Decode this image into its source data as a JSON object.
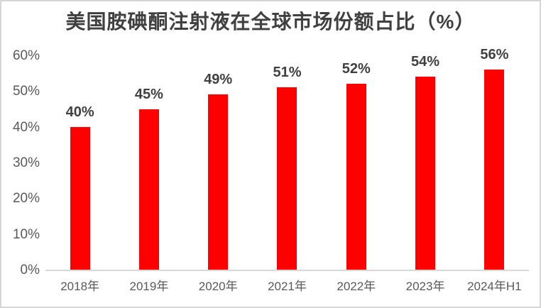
{
  "title": "美国胺碘酮注射液在全球市场份额占比（%）",
  "colors": {
    "bar": "#ff0000",
    "title_text": "#404040",
    "data_label_text": "#404040",
    "axis_text": "#595959",
    "axis_line": "#d9d9d9",
    "border": "#d6d6d6",
    "background": "#ffffff"
  },
  "chart_data": {
    "type": "bar",
    "title": "美国胺碘酮注射液在全球市场份额占比（%）",
    "categories": [
      "2018年",
      "2019年",
      "2020年",
      "2021年",
      "2022年",
      "2023年",
      "2024年H1"
    ],
    "values": [
      40,
      45,
      49,
      51,
      52,
      54,
      56
    ],
    "data_labels": [
      "40%",
      "45%",
      "49%",
      "51%",
      "52%",
      "54%",
      "56%"
    ],
    "xlabel": "",
    "ylabel": "",
    "ylim": [
      0,
      60
    ],
    "yticks": [
      0,
      10,
      20,
      30,
      40,
      50,
      60
    ],
    "ytick_labels": [
      "0%",
      "10%",
      "20%",
      "30%",
      "40%",
      "50%",
      "60%"
    ],
    "grid": false,
    "legend": "none",
    "bar_color": "#ff0000"
  }
}
